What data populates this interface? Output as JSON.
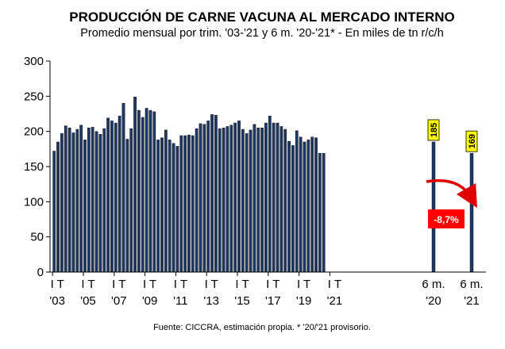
{
  "chart_data": {
    "type": "bar",
    "title": "PRODUCCIÓN DE CARNE VACUNA AL MERCADO INTERNO",
    "subtitle": "Promedio mensual por trim. '03-'21 y 6 m. '20-'21* - En miles de tn r/c/h",
    "ylim": [
      0,
      300
    ],
    "y_ticks": [
      0,
      50,
      100,
      150,
      200,
      250,
      300
    ],
    "quarterly_values": [
      172,
      185,
      197,
      208,
      205,
      198,
      203,
      209,
      188,
      205,
      206,
      200,
      196,
      204,
      219,
      215,
      212,
      222,
      240,
      189,
      204,
      249,
      230,
      220,
      233,
      230,
      228,
      188,
      191,
      202,
      188,
      183,
      179,
      194,
      194,
      195,
      194,
      204,
      211,
      210,
      215,
      224,
      223,
      204,
      205,
      207,
      209,
      212,
      215,
      203,
      197,
      202,
      210,
      205,
      205,
      212,
      222,
      212,
      212,
      207,
      203,
      186,
      180,
      201,
      192,
      185,
      188,
      192,
      191,
      169,
      169
    ],
    "x_tick_labels": [
      {
        "line1": "I T",
        "line2": "'03"
      },
      {
        "line1": "I T",
        "line2": "'05"
      },
      {
        "line1": "I T",
        "line2": "'07"
      },
      {
        "line1": "I T",
        "line2": "'09"
      },
      {
        "line1": "I T",
        "line2": "'11"
      },
      {
        "line1": "I T",
        "line2": "'13"
      },
      {
        "line1": "I T",
        "line2": "'15"
      },
      {
        "line1": "I T",
        "line2": "'17"
      },
      {
        "line1": "I T",
        "line2": "'19"
      },
      {
        "line1": "I T",
        "line2": "'21"
      }
    ],
    "semester_bars": [
      {
        "line1": "6 m.",
        "line2": "'20",
        "value": 185,
        "label": "185"
      },
      {
        "line1": "6 m.",
        "line2": "'21",
        "value": 169,
        "label": "169"
      }
    ],
    "annotation": "-8,7%",
    "source": "Fuente: CICCRA, estimación propia. * '20/'21 provisorio."
  }
}
